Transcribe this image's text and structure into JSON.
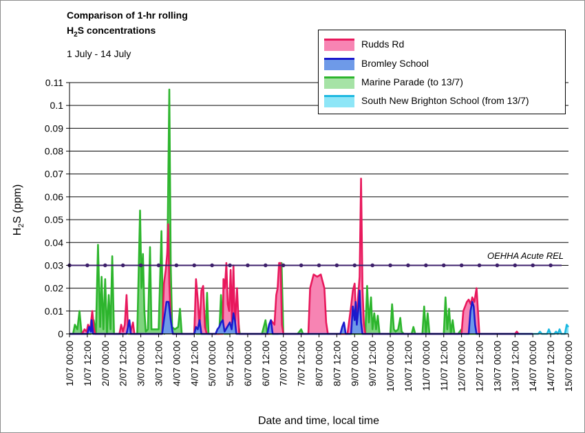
{
  "chart_data": {
    "type": "area",
    "title_line1": "Comparison of 1-hr rolling",
    "title_line2_prefix": "H",
    "title_line2_sub": "2",
    "title_line2_suffix": "S concentrations",
    "subtitle": "1 July - 14 July",
    "ylabel_prefix": "H",
    "ylabel_sub": "2",
    "ylabel_suffix": "S (ppm)",
    "xlabel": "Date and time, local time",
    "ylim": [
      0,
      0.11
    ],
    "yticks": [
      "0",
      "0.01",
      "0.02",
      "0.03",
      "0.04",
      "0.05",
      "0.06",
      "0.07",
      "0.08",
      "0.09",
      "0.1",
      "0.11"
    ],
    "xlim_days": [
      0,
      14
    ],
    "xticks": [
      "1/07 00:00",
      "1/07 12:00",
      "2/07 00:00",
      "2/07 12:00",
      "3/07 00:00",
      "3/07 12:00",
      "4/07 00:00",
      "4/07 12:00",
      "5/07 00:00",
      "5/07 12:00",
      "6/07 00:00",
      "6/07 12:00",
      "7/07 00:00",
      "7/07 12:00",
      "8/07 00:00",
      "8/07 12:00",
      "9/07 00:00",
      "9/07 12:00",
      "10/07 00:00",
      "10/07 12:00",
      "11/07 00:00",
      "11/07 12:00",
      "12/07 00:00",
      "12/07 12:00",
      "13/07 00:00",
      "13/07 12:00",
      "14/07 00:00",
      "14/07 12:00",
      "15/07 00:00"
    ],
    "grid": true,
    "legend_position": "top-right",
    "reference_line": {
      "label": "OEHHA Acute REL",
      "value": 0.03,
      "color": "#3d1f6b"
    },
    "series": [
      {
        "name": "Marine Parade (to 13/7)",
        "fill": "#7fd47f",
        "stroke": "#2db52d",
        "points": [
          [
            0.0,
            0
          ],
          [
            0.1,
            0
          ],
          [
            0.15,
            0.004
          ],
          [
            0.22,
            0.002
          ],
          [
            0.28,
            0.01
          ],
          [
            0.34,
            0
          ],
          [
            0.6,
            0
          ],
          [
            0.68,
            0.006
          ],
          [
            0.74,
            0
          ],
          [
            0.8,
            0.039
          ],
          [
            0.86,
            0.003
          ],
          [
            0.9,
            0.025
          ],
          [
            0.95,
            0.002
          ],
          [
            1.0,
            0.024
          ],
          [
            1.05,
            0
          ],
          [
            1.1,
            0.017
          ],
          [
            1.15,
            0.002
          ],
          [
            1.2,
            0.034
          ],
          [
            1.25,
            0
          ],
          [
            1.55,
            0
          ],
          [
            1.6,
            0.002
          ],
          [
            1.65,
            0
          ],
          [
            1.9,
            0
          ],
          [
            1.98,
            0.054
          ],
          [
            2.02,
            0.02
          ],
          [
            2.06,
            0.035
          ],
          [
            2.1,
            0.01
          ],
          [
            2.14,
            0.001
          ],
          [
            2.2,
            0.002
          ],
          [
            2.26,
            0.038
          ],
          [
            2.3,
            0.002
          ],
          [
            2.5,
            0.002
          ],
          [
            2.58,
            0.045
          ],
          [
            2.62,
            0.005
          ],
          [
            2.66,
            0
          ],
          [
            2.74,
            0.025
          ],
          [
            2.8,
            0.107
          ],
          [
            2.84,
            0.03
          ],
          [
            2.88,
            0.003
          ],
          [
            2.95,
            0.002
          ],
          [
            3.05,
            0.003
          ],
          [
            3.1,
            0.011
          ],
          [
            3.15,
            0
          ],
          [
            3.5,
            0
          ],
          [
            3.52,
            0.008
          ],
          [
            3.56,
            0
          ],
          [
            3.82,
            0
          ],
          [
            3.86,
            0.018
          ],
          [
            3.9,
            0
          ],
          [
            4.2,
            0
          ],
          [
            4.25,
            0.017
          ],
          [
            4.3,
            0.003
          ],
          [
            4.34,
            0
          ],
          [
            4.5,
            0
          ],
          [
            4.55,
            0.01
          ],
          [
            4.6,
            0.002
          ],
          [
            4.65,
            0.002
          ],
          [
            4.72,
            0.007
          ],
          [
            4.78,
            0
          ],
          [
            5.4,
            0
          ],
          [
            5.5,
            0.006
          ],
          [
            5.55,
            0
          ],
          [
            5.85,
            0
          ],
          [
            5.95,
            0.031
          ],
          [
            6.0,
            0
          ],
          [
            6.4,
            0
          ],
          [
            6.5,
            0.002
          ],
          [
            6.55,
            0
          ],
          [
            7.9,
            0
          ],
          [
            8.3,
            0
          ],
          [
            8.35,
            0.021
          ],
          [
            8.4,
            0.005
          ],
          [
            8.46,
            0.016
          ],
          [
            8.5,
            0.002
          ],
          [
            8.55,
            0.009
          ],
          [
            8.6,
            0.002
          ],
          [
            8.65,
            0.008
          ],
          [
            8.7,
            0
          ],
          [
            9.0,
            0
          ],
          [
            9.05,
            0.013
          ],
          [
            9.1,
            0.002
          ],
          [
            9.15,
            0.001
          ],
          [
            9.22,
            0.002
          ],
          [
            9.28,
            0.007
          ],
          [
            9.32,
            0.001
          ],
          [
            9.38,
            0
          ],
          [
            9.6,
            0
          ],
          [
            9.65,
            0.003
          ],
          [
            9.7,
            0
          ],
          [
            9.9,
            0
          ],
          [
            9.95,
            0.012
          ],
          [
            10.0,
            0
          ],
          [
            10.05,
            0.009
          ],
          [
            10.1,
            0
          ],
          [
            10.5,
            0
          ],
          [
            10.55,
            0.016
          ],
          [
            10.6,
            0.002
          ],
          [
            10.65,
            0.011
          ],
          [
            10.7,
            0
          ],
          [
            10.75,
            0.006
          ],
          [
            10.8,
            0
          ],
          [
            10.9,
            0
          ],
          [
            11.0,
            0.002
          ],
          [
            11.1,
            0
          ],
          [
            12.95,
            0
          ],
          [
            13.0,
            0
          ]
        ]
      },
      {
        "name": "Rudds Rd",
        "fill": "#f784b3",
        "stroke": "#e8185c",
        "points": [
          [
            0.0,
            0
          ],
          [
            0.35,
            0
          ],
          [
            0.42,
            0.002
          ],
          [
            0.48,
            0.001
          ],
          [
            0.52,
            0.004
          ],
          [
            0.58,
            0.002
          ],
          [
            0.64,
            0.01
          ],
          [
            0.68,
            0.003
          ],
          [
            0.72,
            0
          ],
          [
            1.4,
            0
          ],
          [
            1.45,
            0.004
          ],
          [
            1.5,
            0.001
          ],
          [
            1.55,
            0.004
          ],
          [
            1.6,
            0.017
          ],
          [
            1.64,
            0.003
          ],
          [
            1.7,
            0
          ],
          [
            1.78,
            0.005
          ],
          [
            1.82,
            0
          ],
          [
            2.6,
            0
          ],
          [
            2.65,
            0.022
          ],
          [
            2.7,
            0.028
          ],
          [
            2.74,
            0.035
          ],
          [
            2.77,
            0.048
          ],
          [
            2.8,
            0.022
          ],
          [
            2.85,
            0.003
          ],
          [
            2.9,
            0
          ],
          [
            3.5,
            0
          ],
          [
            3.55,
            0.024
          ],
          [
            3.6,
            0.015
          ],
          [
            3.65,
            0.003
          ],
          [
            3.7,
            0.019
          ],
          [
            3.75,
            0.021
          ],
          [
            3.8,
            0.003
          ],
          [
            3.85,
            0
          ],
          [
            4.3,
            0
          ],
          [
            4.32,
            0.024
          ],
          [
            4.36,
            0.02
          ],
          [
            4.4,
            0.031
          ],
          [
            4.44,
            0.013
          ],
          [
            4.48,
            0.01
          ],
          [
            4.52,
            0.028
          ],
          [
            4.56,
            0.005
          ],
          [
            4.6,
            0.03
          ],
          [
            4.64,
            0.003
          ],
          [
            4.7,
            0.02
          ],
          [
            4.76,
            0
          ],
          [
            5.6,
            0
          ],
          [
            5.65,
            0.006
          ],
          [
            5.7,
            0.005
          ],
          [
            5.75,
            0.004
          ],
          [
            5.8,
            0.017
          ],
          [
            5.84,
            0.02
          ],
          [
            5.88,
            0.031
          ],
          [
            5.92,
            0.031
          ],
          [
            5.96,
            0.004
          ],
          [
            6.0,
            0
          ],
          [
            6.7,
            0
          ],
          [
            6.75,
            0.02
          ],
          [
            6.85,
            0.026
          ],
          [
            6.95,
            0.025
          ],
          [
            7.05,
            0.026
          ],
          [
            7.1,
            0.023
          ],
          [
            7.15,
            0.02
          ],
          [
            7.2,
            0.005
          ],
          [
            7.25,
            0
          ],
          [
            7.8,
            0
          ],
          [
            7.85,
            0.006
          ],
          [
            7.9,
            0.012
          ],
          [
            7.95,
            0.019
          ],
          [
            8.0,
            0.022
          ],
          [
            8.05,
            0.005
          ],
          [
            8.1,
            0.017
          ],
          [
            8.14,
            0.025
          ],
          [
            8.18,
            0.068
          ],
          [
            8.22,
            0.02
          ],
          [
            8.26,
            0.004
          ],
          [
            8.3,
            0
          ],
          [
            10.5,
            0
          ],
          [
            11.0,
            0
          ],
          [
            11.05,
            0.01
          ],
          [
            11.1,
            0.012
          ],
          [
            11.15,
            0.014
          ],
          [
            11.2,
            0.015
          ],
          [
            11.26,
            0.013
          ],
          [
            11.3,
            0.016
          ],
          [
            11.36,
            0.014
          ],
          [
            11.42,
            0.02
          ],
          [
            11.46,
            0.01
          ],
          [
            11.5,
            0
          ],
          [
            12.5,
            0
          ],
          [
            12.55,
            0.001
          ],
          [
            12.6,
            0
          ]
        ]
      },
      {
        "name": "Bromley School",
        "fill": "#6e9ae8",
        "stroke": "#1a1acc",
        "points": [
          [
            0.0,
            0
          ],
          [
            0.5,
            0
          ],
          [
            0.55,
            0.003
          ],
          [
            0.6,
            0.001
          ],
          [
            0.62,
            0.006
          ],
          [
            0.66,
            0
          ],
          [
            1.6,
            0
          ],
          [
            1.68,
            0.006
          ],
          [
            1.72,
            0
          ],
          [
            2.6,
            0
          ],
          [
            2.65,
            0.006
          ],
          [
            2.72,
            0.014
          ],
          [
            2.78,
            0.014
          ],
          [
            2.84,
            0.006
          ],
          [
            2.9,
            0
          ],
          [
            3.5,
            0
          ],
          [
            3.55,
            0.003
          ],
          [
            3.6,
            0.002
          ],
          [
            3.65,
            0.006
          ],
          [
            3.7,
            0
          ],
          [
            4.1,
            0
          ],
          [
            4.15,
            0.002
          ],
          [
            4.2,
            0.003
          ],
          [
            4.25,
            0.005
          ],
          [
            4.3,
            0.006
          ],
          [
            4.35,
            0.001
          ],
          [
            4.5,
            0.005
          ],
          [
            4.55,
            0.002
          ],
          [
            4.6,
            0.009
          ],
          [
            4.64,
            0.006
          ],
          [
            4.68,
            0
          ],
          [
            5.55,
            0
          ],
          [
            5.6,
            0.004
          ],
          [
            5.65,
            0.006
          ],
          [
            5.7,
            0
          ],
          [
            7.6,
            0
          ],
          [
            7.65,
            0.003
          ],
          [
            7.7,
            0.005
          ],
          [
            7.75,
            0
          ],
          [
            7.9,
            0
          ],
          [
            7.95,
            0.012
          ],
          [
            8.0,
            0.006
          ],
          [
            8.03,
            0.014
          ],
          [
            8.06,
            0.004
          ],
          [
            8.1,
            0.01
          ],
          [
            8.14,
            0.019
          ],
          [
            8.18,
            0.005
          ],
          [
            8.22,
            0
          ],
          [
            11.2,
            0
          ],
          [
            11.25,
            0.01
          ],
          [
            11.3,
            0.014
          ],
          [
            11.34,
            0.012
          ],
          [
            11.38,
            0.004
          ],
          [
            11.42,
            0
          ],
          [
            13.0,
            0
          ]
        ]
      },
      {
        "name": "South New Brighton School (from 13/7)",
        "fill": "#7fe0f5",
        "stroke": "#1cb8e0",
        "points": [
          [
            13.0,
            0
          ],
          [
            13.15,
            0
          ],
          [
            13.2,
            0.001
          ],
          [
            13.25,
            0
          ],
          [
            13.4,
            0
          ],
          [
            13.45,
            0.002
          ],
          [
            13.5,
            0
          ],
          [
            13.6,
            0
          ],
          [
            13.65,
            0.001
          ],
          [
            13.7,
            0
          ],
          [
            13.75,
            0.002
          ],
          [
            13.8,
            0
          ],
          [
            13.9,
            0
          ],
          [
            13.95,
            0.004
          ],
          [
            14.0,
            0.003
          ]
        ]
      }
    ]
  }
}
